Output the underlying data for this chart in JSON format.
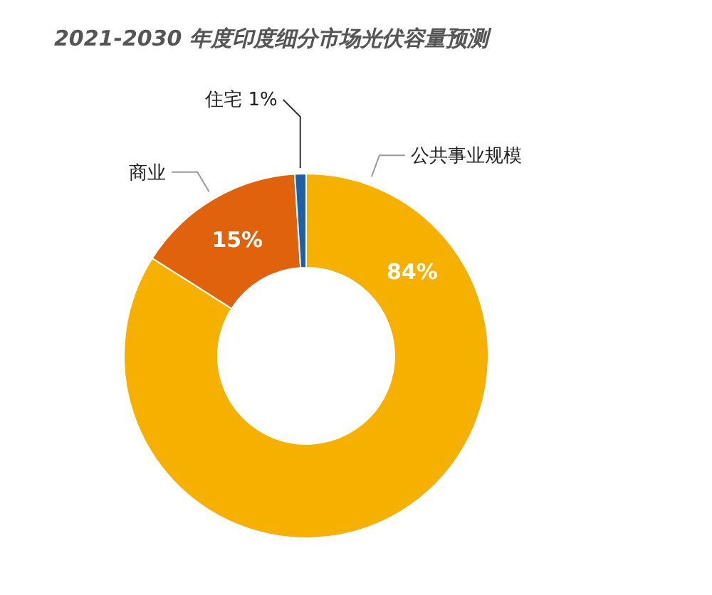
{
  "chart_data": {
    "type": "donut",
    "title": "2021-2030 年度印度细分市场光伏容量预测",
    "categories": [
      "公共事业规模",
      "商业",
      "住宅"
    ],
    "values": [
      84,
      15,
      1
    ],
    "colors": [
      "#f5b000",
      "#e0620c",
      "#1f5fa8"
    ],
    "value_labels": [
      "84%",
      "15%",
      "1%"
    ]
  }
}
